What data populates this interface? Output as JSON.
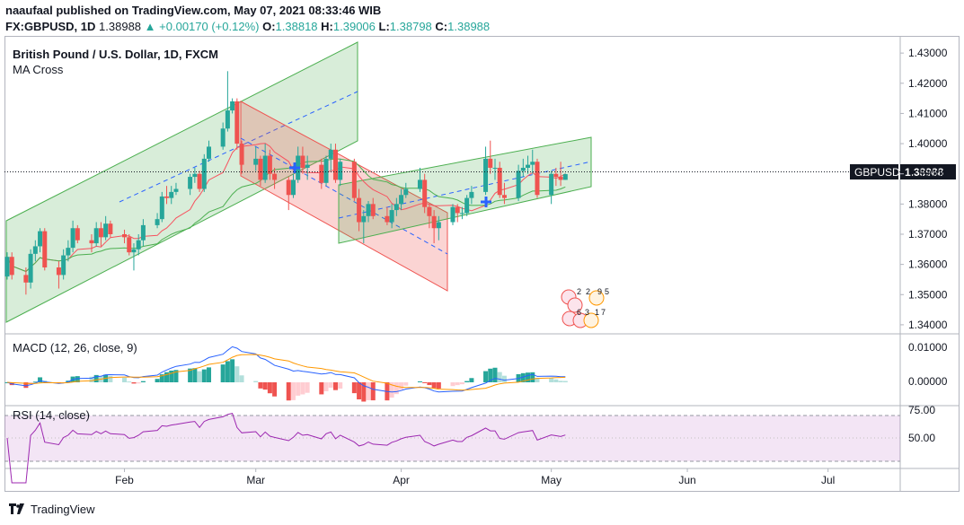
{
  "header": {
    "line1": "naaufaal published on TradingView.com, May 07, 2021 08:33:46 WIB",
    "symbol": "FX:GBPUSD, 1D",
    "last": "1.38988",
    "change": "+0.00170 (+0.12%)",
    "o_label": "O:",
    "o": "1.38818",
    "h_label": "H:",
    "h": "1.39006",
    "l_label": "L:",
    "l": "1.38798",
    "c_label": "C:",
    "c": "1.38988"
  },
  "main_pane": {
    "title": "British Pound / U.S. Dollar, 1D, FXCM",
    "study": "MA Cross",
    "price_tag_label": "GBPUSD",
    "price_tag_value": "1.38988",
    "y_ticks": [
      "1.43000",
      "1.42000",
      "1.41000",
      "1.40000",
      "1.39000",
      "1.38000",
      "1.37000",
      "1.36000",
      "1.35000",
      "1.34000"
    ]
  },
  "macd_pane": {
    "title": "MACD (12, 26, close, 9)",
    "y_ticks": [
      "0.01000",
      "0.00000"
    ]
  },
  "rsi_pane": {
    "title": "RSI (14, close)",
    "y_ticks": [
      "75.00",
      "50.00"
    ]
  },
  "x_axis": {
    "labels": [
      "Feb",
      "Mar",
      "Apr",
      "May",
      "Jun",
      "Jul"
    ]
  },
  "footer": {
    "brand": "TradingView"
  },
  "colors": {
    "up": "#26a69a",
    "down": "#ef5350",
    "macd": "#2962ff",
    "signal": "#ff9800",
    "rsi": "#9c27b0",
    "ma_fast": "#f7525f",
    "ma_slow": "#4caf50"
  },
  "chart_data": {
    "type": "candlestick",
    "x_range": [
      "2021-01-07",
      "2021-07-16"
    ],
    "ylim": [
      1.337,
      1.4345
    ],
    "dates": [
      "2021-01-07",
      "2021-01-08",
      "2021-01-11",
      "2021-01-12",
      "2021-01-13",
      "2021-01-14",
      "2021-01-15",
      "2021-01-18",
      "2021-01-19",
      "2021-01-20",
      "2021-01-21",
      "2021-01-22",
      "2021-01-25",
      "2021-01-26",
      "2021-01-27",
      "2021-01-28",
      "2021-01-29",
      "2021-02-01",
      "2021-02-02",
      "2021-02-03",
      "2021-02-04",
      "2021-02-05",
      "2021-02-08",
      "2021-02-09",
      "2021-02-10",
      "2021-02-11",
      "2021-02-12",
      "2021-02-15",
      "2021-02-16",
      "2021-02-17",
      "2021-02-18",
      "2021-02-19",
      "2021-02-22",
      "2021-02-23",
      "2021-02-24",
      "2021-02-25",
      "2021-02-26",
      "2021-03-01",
      "2021-03-02",
      "2021-03-03",
      "2021-03-04",
      "2021-03-05",
      "2021-03-08",
      "2021-03-09",
      "2021-03-10",
      "2021-03-11",
      "2021-03-12",
      "2021-03-15",
      "2021-03-16",
      "2021-03-17",
      "2021-03-18",
      "2021-03-19",
      "2021-03-22",
      "2021-03-23",
      "2021-03-24",
      "2021-03-25",
      "2021-03-26",
      "2021-03-29",
      "2021-03-30",
      "2021-03-31",
      "2021-04-01",
      "2021-04-02",
      "2021-04-05",
      "2021-04-06",
      "2021-04-07",
      "2021-04-08",
      "2021-04-09",
      "2021-04-12",
      "2021-04-13",
      "2021-04-14",
      "2021-04-15",
      "2021-04-16",
      "2021-04-19",
      "2021-04-20",
      "2021-04-21",
      "2021-04-22",
      "2021-04-23",
      "2021-04-26",
      "2021-04-27",
      "2021-04-28",
      "2021-04-29",
      "2021-04-30",
      "2021-05-03",
      "2021-05-04",
      "2021-05-05",
      "2021-05-06"
    ],
    "open": [
      1.356,
      1.3625,
      1.3565,
      1.354,
      1.3635,
      1.366,
      1.371,
      1.359,
      1.3565,
      1.363,
      1.3655,
      1.372,
      1.368,
      1.367,
      1.372,
      1.369,
      1.3735,
      1.37,
      1.369,
      1.364,
      1.365,
      1.368,
      1.373,
      1.375,
      1.3825,
      1.382,
      1.384,
      1.385,
      1.389,
      1.39,
      1.385,
      1.395,
      1.399,
      1.405,
      1.411,
      1.414,
      1.4,
      1.393,
      1.395,
      1.388,
      1.396,
      1.39,
      1.388,
      1.383,
      1.388,
      1.396,
      1.392,
      1.393,
      1.387,
      1.395,
      1.398,
      1.388,
      1.394,
      1.382,
      1.374,
      1.376,
      1.38,
      1.376,
      1.374,
      1.378,
      1.38,
      1.383,
      1.385,
      1.388,
      1.379,
      1.376,
      1.372,
      1.374,
      1.379,
      1.377,
      1.377,
      1.382,
      1.384,
      1.395,
      1.392,
      1.392,
      1.383,
      1.382,
      1.391,
      1.392,
      1.393,
      1.394,
      1.383,
      1.39,
      1.389,
      1.388
    ],
    "close": [
      1.3625,
      1.3565,
      1.354,
      1.3635,
      1.366,
      1.371,
      1.359,
      1.3565,
      1.363,
      1.3655,
      1.372,
      1.368,
      1.367,
      1.372,
      1.369,
      1.3735,
      1.37,
      1.369,
      1.364,
      1.365,
      1.368,
      1.373,
      1.375,
      1.3825,
      1.382,
      1.384,
      1.385,
      1.389,
      1.39,
      1.385,
      1.395,
      1.399,
      1.405,
      1.411,
      1.414,
      1.4,
      1.393,
      1.395,
      1.388,
      1.396,
      1.39,
      1.388,
      1.383,
      1.388,
      1.396,
      1.392,
      1.393,
      1.387,
      1.395,
      1.398,
      1.388,
      1.394,
      1.382,
      1.374,
      1.376,
      1.38,
      1.376,
      1.374,
      1.378,
      1.38,
      1.383,
      1.385,
      1.388,
      1.379,
      1.376,
      1.372,
      1.374,
      1.379,
      1.377,
      1.377,
      1.382,
      1.384,
      1.395,
      1.392,
      1.392,
      1.383,
      1.382,
      1.391,
      1.392,
      1.393,
      1.394,
      1.383,
      1.39,
      1.389,
      1.388,
      1.3899
    ],
    "high": [
      1.364,
      1.364,
      1.359,
      1.365,
      1.368,
      1.372,
      1.372,
      1.361,
      1.365,
      1.368,
      1.3745,
      1.373,
      1.37,
      1.374,
      1.374,
      1.376,
      1.3745,
      1.3715,
      1.37,
      1.367,
      1.37,
      1.375,
      1.377,
      1.384,
      1.386,
      1.386,
      1.387,
      1.39,
      1.392,
      1.391,
      1.3965,
      1.401,
      1.407,
      1.424,
      1.415,
      1.415,
      1.401,
      1.399,
      1.396,
      1.4,
      1.398,
      1.392,
      1.389,
      1.39,
      1.399,
      1.399,
      1.396,
      1.395,
      1.396,
      1.4,
      1.4,
      1.395,
      1.395,
      1.385,
      1.378,
      1.381,
      1.382,
      1.379,
      1.38,
      1.382,
      1.385,
      1.387,
      1.392,
      1.39,
      1.38,
      1.378,
      1.376,
      1.38,
      1.38,
      1.379,
      1.383,
      1.386,
      1.399,
      1.401,
      1.395,
      1.394,
      1.387,
      1.393,
      1.395,
      1.396,
      1.398,
      1.395,
      1.391,
      1.392,
      1.394,
      1.3901
    ],
    "low": [
      1.355,
      1.355,
      1.35,
      1.352,
      1.361,
      1.364,
      1.358,
      1.352,
      1.355,
      1.361,
      1.364,
      1.367,
      1.364,
      1.366,
      1.366,
      1.368,
      1.369,
      1.367,
      1.363,
      1.358,
      1.363,
      1.366,
      1.372,
      1.374,
      1.38,
      1.38,
      1.383,
      1.383,
      1.387,
      1.384,
      1.384,
      1.394,
      1.398,
      1.404,
      1.41,
      1.398,
      1.39,
      1.391,
      1.386,
      1.387,
      1.388,
      1.385,
      1.378,
      1.382,
      1.387,
      1.39,
      1.388,
      1.385,
      1.386,
      1.391,
      1.387,
      1.386,
      1.381,
      1.371,
      1.367,
      1.374,
      1.375,
      1.373,
      1.372,
      1.376,
      1.378,
      1.382,
      1.384,
      1.377,
      1.372,
      1.367,
      1.368,
      1.373,
      1.374,
      1.375,
      1.376,
      1.38,
      1.383,
      1.39,
      1.388,
      1.382,
      1.38,
      1.381,
      1.389,
      1.39,
      1.39,
      1.382,
      1.38,
      1.386,
      1.386,
      1.388
    ]
  }
}
